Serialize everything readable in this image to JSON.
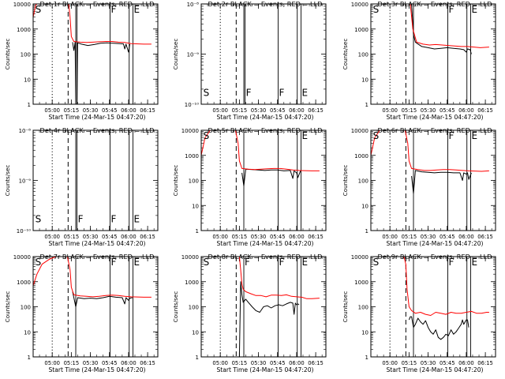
{
  "x_axis": {
    "tick_labels": [
      "05:00",
      "05:15",
      "05:30",
      "05:45",
      "06:00",
      "06:15"
    ],
    "tick_minutes": [
      0,
      15,
      30,
      45,
      60,
      75
    ],
    "minor_every_minutes": 5,
    "xlim_minutes": [
      -15,
      83
    ],
    "label": "Start Time (24-Mar-15 04:47:20)"
  },
  "ylabel": "Counts/sec",
  "colors": {
    "events": "#000000",
    "lld": "#ff0000",
    "axes": "#000000",
    "background": "#ffffff"
  },
  "chart_data": [
    {
      "type": "line",
      "title": "Det 1r BLACK = Events, RED = LLD",
      "ylabel": "Counts/sec",
      "yscale": "log",
      "ylim": [
        1,
        10000
      ],
      "y_tick_labels": [
        "1",
        "10",
        "100",
        "1000",
        "10000"
      ],
      "y_tick_values": [
        1,
        10,
        100,
        1000,
        10000
      ],
      "dotted_lines_min": [
        0
      ],
      "dashed_lines_min": [
        12.5
      ],
      "solid_lines_min": [
        18.5,
        19.5,
        45.5,
        60.5,
        63.5
      ],
      "markers": [
        {
          "text": "S",
          "x_min": -14,
          "y": 6000
        },
        {
          "text": "F",
          "x_min": 45.5,
          "y": 6000
        },
        {
          "text": "E",
          "x_min": 63.5,
          "y": 6000
        }
      ],
      "series": [
        {
          "color": "events",
          "x": [
            16,
            17,
            18,
            18.5,
            19.5,
            20,
            23,
            28,
            33,
            38,
            43,
            48,
            53,
            56,
            57,
            58,
            60,
            61
          ],
          "y": [
            300,
            140,
            300,
            1,
            1,
            280,
            250,
            220,
            240,
            270,
            280,
            270,
            260,
            255,
            160,
            250,
            120,
            250
          ]
        },
        {
          "color": "lld",
          "x": [
            -15,
            -13,
            -12,
            -11,
            -10,
            -8,
            -3,
            2,
            6,
            8,
            10,
            12,
            13,
            14,
            15,
            17,
            22,
            27,
            32,
            37,
            42,
            47,
            52,
            57,
            62,
            72,
            78
          ],
          "y": [
            3000,
            9000,
            10000,
            10000,
            10000,
            10000,
            10000,
            10000,
            10000,
            10000,
            10000,
            10000,
            10000,
            3000,
            500,
            320,
            300,
            290,
            300,
            310,
            320,
            320,
            300,
            290,
            260,
            250,
            250
          ]
        }
      ]
    },
    {
      "type": "line",
      "title": "Det 2r BLACK = Events, RED = LLD",
      "ylabel": "Counts/sec",
      "yscale": "log",
      "ylim": [
        1e-10,
        1e-08
      ],
      "y_tick_labels": [
        "10⁻¹⁰",
        "10⁻⁹",
        "10⁻⁸"
      ],
      "y_tick_values": [
        1e-10,
        1e-09,
        1e-08
      ],
      "dotted_lines_min": [
        0
      ],
      "dashed_lines_min": [
        12.5
      ],
      "solid_lines_min": [
        18.5,
        19.5,
        45.5,
        60.5,
        63.5
      ],
      "markers": [
        {
          "text": "S",
          "x_min": -14,
          "y": 1.7e-10
        },
        {
          "text": "F",
          "x_min": 19.5,
          "y": 1.7e-10
        },
        {
          "text": "F",
          "x_min": 45.5,
          "y": 1.7e-10
        },
        {
          "text": "E",
          "x_min": 63.5,
          "y": 1.7e-10
        }
      ],
      "series": []
    },
    {
      "type": "line",
      "title": "Det 3r BLACK = Events, RED = LLD",
      "ylabel": "Counts/sec",
      "yscale": "log",
      "ylim": [
        1,
        10000
      ],
      "y_tick_labels": [
        "1",
        "10",
        "100",
        "1000",
        "10000"
      ],
      "y_tick_values": [
        1,
        10,
        100,
        1000,
        10000
      ],
      "dotted_lines_min": [
        0
      ],
      "dashed_lines_min": [
        12.5
      ],
      "solid_lines_min": [
        18.5,
        45.5,
        60.5,
        63.5
      ],
      "markers": [
        {
          "text": "S",
          "x_min": -14,
          "y": 6000
        },
        {
          "text": "F",
          "x_min": 45.5,
          "y": 6000
        },
        {
          "text": "E",
          "x_min": 63.5,
          "y": 6000
        }
      ],
      "series": [
        {
          "color": "events",
          "x": [
            17,
            18.5,
            20,
            25,
            30,
            35,
            40,
            45,
            50,
            55,
            58,
            60,
            61,
            63,
            64
          ],
          "y": [
            10000,
            600,
            300,
            200,
            180,
            160,
            170,
            180,
            170,
            160,
            150,
            120,
            160,
            150,
            100
          ]
        },
        {
          "color": "lld",
          "x": [
            16,
            18,
            21,
            26,
            31,
            36,
            41,
            46,
            51,
            56,
            61,
            66,
            71,
            78
          ],
          "y": [
            10000,
            1000,
            300,
            250,
            230,
            240,
            230,
            220,
            210,
            200,
            200,
            190,
            180,
            190
          ]
        }
      ]
    },
    {
      "type": "line",
      "title": "Det 4r BLACK = Events, RED = LLD",
      "ylabel": "Counts/sec",
      "yscale": "log",
      "ylim": [
        1e-10,
        1e-08
      ],
      "y_tick_labels": [
        "10⁻¹⁰",
        "10⁻⁹",
        "10⁻⁸"
      ],
      "y_tick_values": [
        1e-10,
        1e-09,
        1e-08
      ],
      "dotted_lines_min": [
        0
      ],
      "dashed_lines_min": [
        12.5
      ],
      "solid_lines_min": [
        18.5,
        19.5,
        45.5,
        60.5,
        63.5
      ],
      "markers": [
        {
          "text": "S",
          "x_min": -14,
          "y": 1.7e-10
        },
        {
          "text": "F",
          "x_min": 19.5,
          "y": 1.7e-10
        },
        {
          "text": "F",
          "x_min": 45.5,
          "y": 1.7e-10
        },
        {
          "text": "E",
          "x_min": 63.5,
          "y": 1.7e-10
        }
      ],
      "series": []
    },
    {
      "type": "line",
      "title": "Det 5r BLACK = Events, RED = LLD",
      "ylabel": "Counts/sec",
      "yscale": "log",
      "ylim": [
        1,
        10000
      ],
      "y_tick_labels": [
        "1",
        "10",
        "100",
        "1000",
        "10000"
      ],
      "y_tick_values": [
        1,
        10,
        100,
        1000,
        10000
      ],
      "dotted_lines_min": [
        0
      ],
      "dashed_lines_min": [
        12.5
      ],
      "solid_lines_min": [
        18.5,
        45.5,
        60.5,
        63.5
      ],
      "markers": [
        {
          "text": "S",
          "x_min": -14,
          "y": 6000
        },
        {
          "text": "E",
          "x_min": 63.5,
          "y": 6000
        }
      ],
      "series": [
        {
          "color": "events",
          "x": [
            17,
            18.5,
            20,
            25,
            30,
            35,
            40,
            45,
            50,
            55,
            57,
            58,
            60,
            61,
            63
          ],
          "y": [
            200,
            60,
            280,
            270,
            260,
            250,
            260,
            260,
            240,
            250,
            120,
            240,
            200,
            130,
            240
          ]
        },
        {
          "color": "lld",
          "x": [
            -15,
            -12,
            -8,
            -2,
            3,
            9,
            12,
            14,
            15,
            17,
            22,
            27,
            32,
            37,
            42,
            47,
            52,
            57,
            62,
            72,
            78
          ],
          "y": [
            1000,
            5000,
            10000,
            10000,
            10000,
            10000,
            10000,
            3000,
            600,
            300,
            280,
            270,
            280,
            290,
            300,
            300,
            280,
            260,
            250,
            240,
            240
          ]
        }
      ]
    },
    {
      "type": "line",
      "title": "Det 6r BLACK = Events, RED = LLD",
      "ylabel": "Counts/sec",
      "yscale": "log",
      "ylim": [
        1,
        10000
      ],
      "y_tick_labels": [
        "1",
        "10",
        "100",
        "1000",
        "10000"
      ],
      "y_tick_values": [
        1,
        10,
        100,
        1000,
        10000
      ],
      "dotted_lines_min": [
        0
      ],
      "dashed_lines_min": [
        12.5
      ],
      "solid_lines_min": [
        18.5,
        45.5,
        60.5,
        63.5
      ],
      "markers": [
        {
          "text": "S",
          "x_min": -14,
          "y": 6000
        },
        {
          "text": "F",
          "x_min": 45.5,
          "y": 6000
        },
        {
          "text": "E",
          "x_min": 63.5,
          "y": 6000
        }
      ],
      "series": [
        {
          "color": "events",
          "x": [
            17,
            18.5,
            20,
            25,
            30,
            35,
            40,
            45,
            50,
            55,
            57,
            58,
            60,
            61,
            62,
            64
          ],
          "y": [
            150,
            30,
            250,
            220,
            210,
            200,
            210,
            210,
            200,
            200,
            100,
            200,
            180,
            200,
            110,
            200
          ]
        },
        {
          "color": "lld",
          "x": [
            -15,
            -12,
            -8,
            -2,
            3,
            9,
            12,
            14,
            15,
            17,
            22,
            27,
            32,
            37,
            42,
            47,
            52,
            57,
            62,
            72,
            78
          ],
          "y": [
            1000,
            5000,
            10000,
            10000,
            10000,
            10000,
            10000,
            3000,
            600,
            300,
            270,
            250,
            250,
            260,
            270,
            270,
            260,
            250,
            240,
            230,
            240
          ]
        }
      ]
    },
    {
      "type": "line",
      "title": "Det 7r BLACK = Events, RED = LLD",
      "ylabel": "Counts/sec",
      "yscale": "log",
      "ylim": [
        1,
        10000
      ],
      "y_tick_labels": [
        "1",
        "10",
        "100",
        "1000",
        "10000"
      ],
      "y_tick_values": [
        1,
        10,
        100,
        1000,
        10000
      ],
      "dotted_lines_min": [
        0
      ],
      "dashed_lines_min": [
        12.5
      ],
      "solid_lines_min": [
        18.5,
        45.5,
        60.5,
        63.5
      ],
      "markers": [
        {
          "text": "S",
          "x_min": -14,
          "y": 6000
        },
        {
          "text": "F",
          "x_min": 45.5,
          "y": 6000
        },
        {
          "text": "E",
          "x_min": 63.5,
          "y": 6000
        }
      ],
      "series": [
        {
          "color": "events",
          "x": [
            16,
            18.5,
            20,
            25,
            30,
            35,
            40,
            45,
            50,
            55,
            57,
            58,
            60,
            61,
            63
          ],
          "y": [
            400,
            100,
            230,
            210,
            220,
            210,
            230,
            260,
            240,
            230,
            130,
            230,
            180,
            220,
            230
          ]
        },
        {
          "color": "lld",
          "x": [
            -15,
            -12,
            -8,
            -2,
            3,
            9,
            12,
            14,
            15,
            17,
            22,
            27,
            32,
            37,
            42,
            47,
            52,
            57,
            62,
            72,
            78
          ],
          "y": [
            700,
            2000,
            5000,
            8000,
            10000,
            10000,
            10000,
            3000,
            600,
            300,
            270,
            260,
            250,
            260,
            280,
            290,
            280,
            260,
            250,
            240,
            240
          ]
        }
      ]
    },
    {
      "type": "line",
      "title": "Det 8r BLACK = Events, RED = LLD",
      "ylabel": "Counts/sec",
      "yscale": "log",
      "ylim": [
        1,
        10000
      ],
      "y_tick_labels": [
        "1",
        "10",
        "100",
        "1000",
        "10000"
      ],
      "y_tick_values": [
        1,
        10,
        100,
        1000,
        10000
      ],
      "dotted_lines_min": [
        0
      ],
      "dashed_lines_min": [
        12.5
      ],
      "solid_lines_min": [
        18.5,
        45.5,
        60.5,
        63.5
      ],
      "markers": [
        {
          "text": "S",
          "x_min": -14,
          "y": 6000
        },
        {
          "text": "F",
          "x_min": 18.5,
          "y": 6000
        },
        {
          "text": "F",
          "x_min": 45.5,
          "y": 6000
        },
        {
          "text": "E",
          "x_min": 63.5,
          "y": 6000
        }
      ],
      "series": [
        {
          "color": "events",
          "x": [
            14,
            15,
            16,
            17,
            18,
            20,
            22,
            25,
            28,
            31,
            34,
            37,
            40,
            43,
            46,
            49,
            52,
            55,
            57,
            58,
            59,
            60,
            61,
            62
          ],
          "y": [
            1,
            1,
            1000,
            300,
            150,
            200,
            150,
            100,
            70,
            60,
            100,
            110,
            90,
            110,
            120,
            110,
            130,
            150,
            140,
            50,
            140,
            120,
            130,
            120
          ]
        },
        {
          "color": "lld",
          "x": [
            15,
            16,
            17,
            18,
            20,
            24,
            28,
            32,
            36,
            40,
            44,
            48,
            52,
            56,
            60,
            64,
            68,
            72,
            78
          ],
          "y": [
            10000,
            3000,
            800,
            500,
            400,
            330,
            280,
            280,
            250,
            290,
            290,
            280,
            300,
            260,
            250,
            240,
            210,
            210,
            220
          ]
        }
      ]
    },
    {
      "type": "line",
      "title": "Det 9r BLACK = Events, RED = LLD",
      "ylabel": "Counts/sec",
      "yscale": "log",
      "ylim": [
        1,
        10000
      ],
      "y_tick_labels": [
        "1",
        "10",
        "100",
        "1000",
        "10000"
      ],
      "y_tick_values": [
        1,
        10,
        100,
        1000,
        10000
      ],
      "dotted_lines_min": [
        0
      ],
      "dashed_lines_min": [
        12.5
      ],
      "solid_lines_min": [
        18.5,
        45.5,
        60.5,
        63.5
      ],
      "markers": [
        {
          "text": "S",
          "x_min": -14,
          "y": 6000
        },
        {
          "text": "F",
          "x_min": 45.5,
          "y": 6000
        },
        {
          "text": "E",
          "x_min": 63.5,
          "y": 6000
        }
      ],
      "series": [
        {
          "color": "events",
          "x": [
            15,
            16,
            17,
            18.5,
            20,
            22,
            24,
            26,
            28,
            30,
            32,
            34,
            36,
            38,
            40,
            42,
            44,
            46,
            48,
            50,
            52,
            54,
            56,
            57,
            58,
            60,
            61,
            62
          ],
          "y": [
            30,
            40,
            40,
            15,
            20,
            35,
            25,
            20,
            28,
            15,
            10,
            8,
            12,
            6,
            5,
            6,
            8,
            7,
            12,
            8,
            10,
            14,
            20,
            30,
            20,
            30,
            30,
            15
          ]
        },
        {
          "color": "lld",
          "x": [
            -5,
            -2,
            2,
            6,
            9,
            11,
            12.5,
            13.5,
            15,
            17,
            20,
            24,
            28,
            32,
            36,
            40,
            44,
            48,
            52,
            56,
            60,
            64,
            68,
            72,
            76,
            78
          ],
          "y": [
            10000,
            10000,
            10000,
            10000,
            10000,
            10000,
            5000,
            500,
            100,
            70,
            55,
            60,
            50,
            45,
            60,
            55,
            50,
            60,
            55,
            55,
            60,
            65,
            55,
            55,
            60,
            60
          ]
        }
      ]
    }
  ]
}
